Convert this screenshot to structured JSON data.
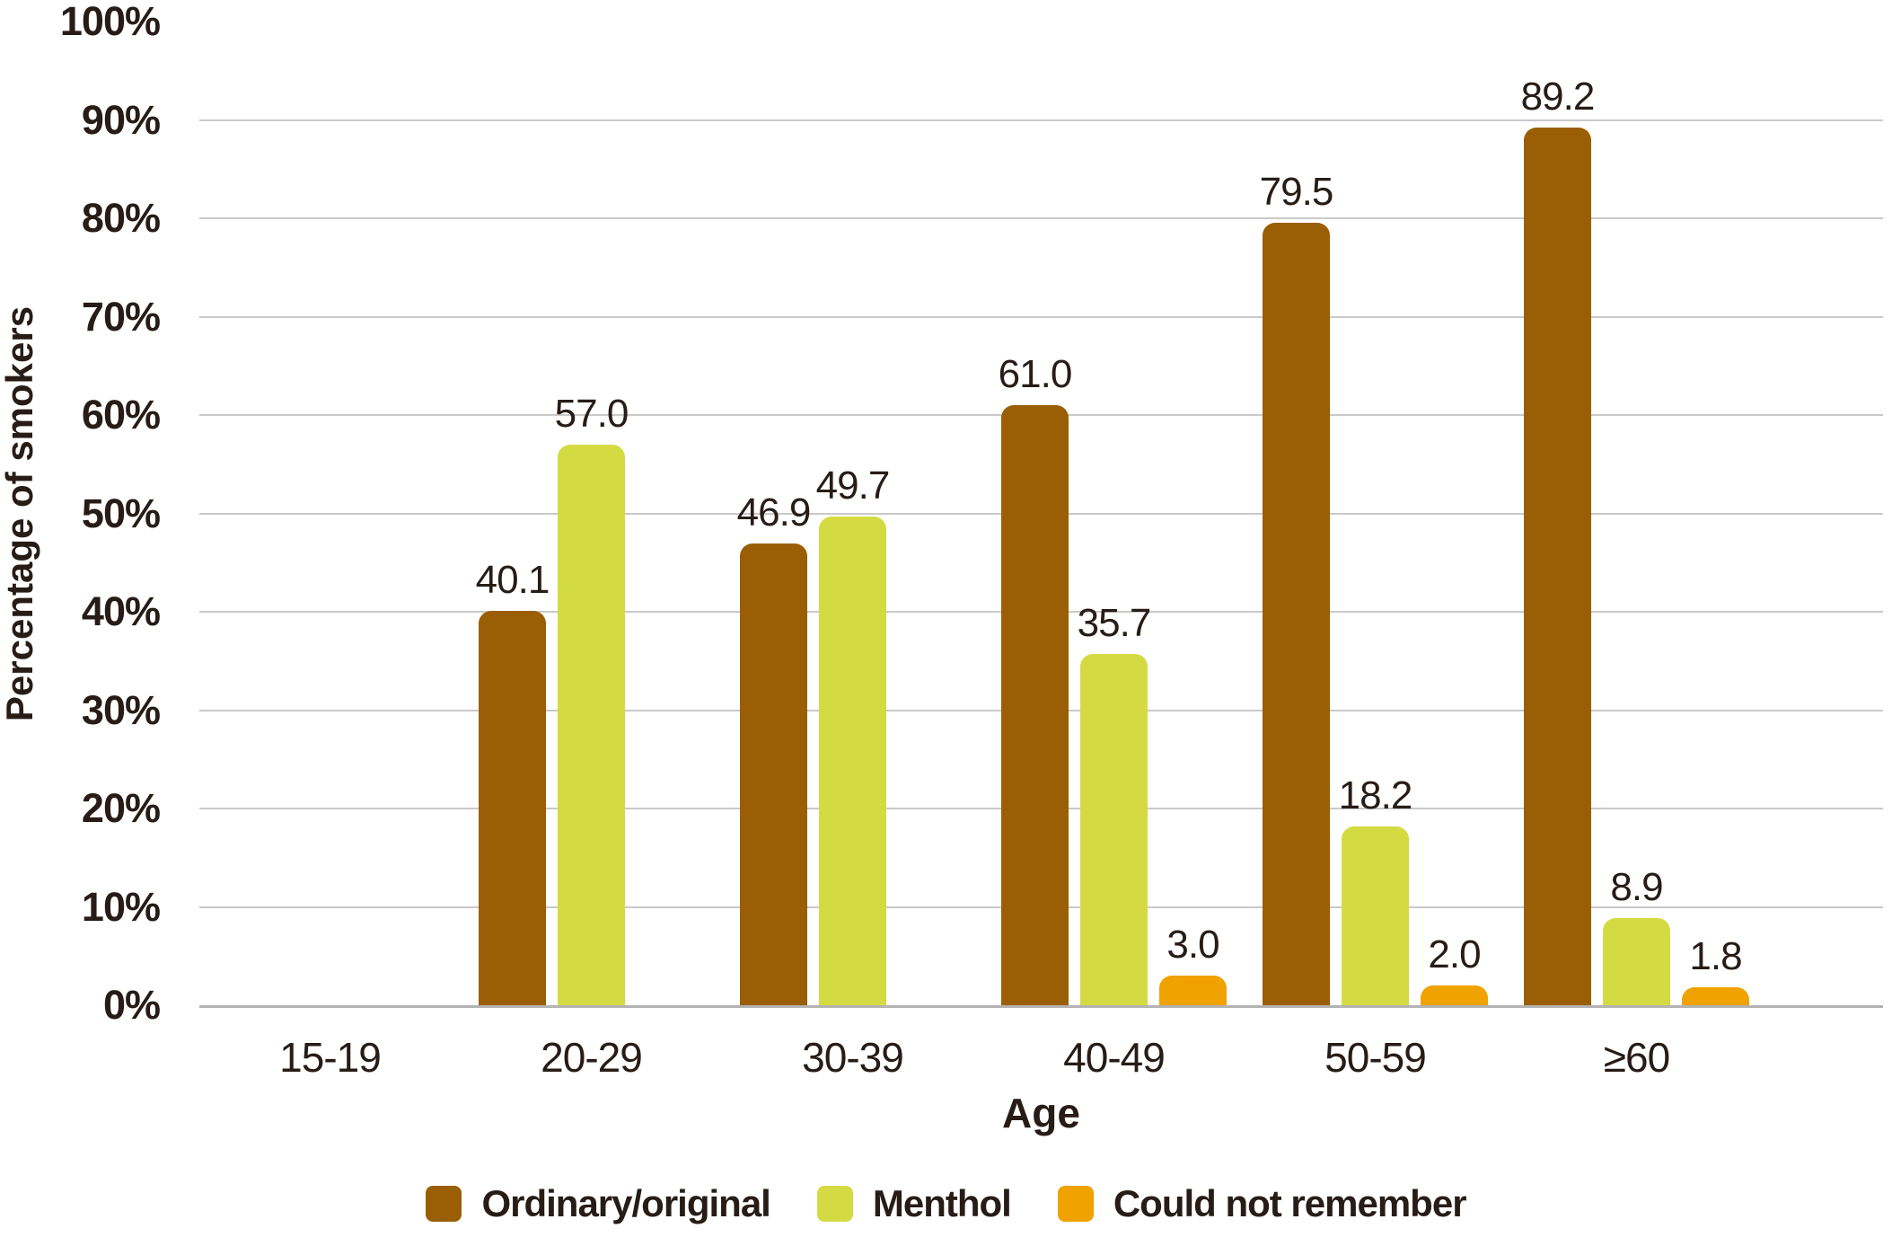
{
  "figure": {
    "background": "#ffffff",
    "text_color": "#271c16",
    "gridline_color": "#c9c9c9",
    "axisline_color": "#b3b3b3"
  },
  "chart_data": {
    "type": "bar",
    "title": "",
    "xlabel": "Age",
    "ylabel": "Percentage of smokers",
    "categories": [
      "15-19",
      "20-29",
      "30-39",
      "40-49",
      "50-59",
      "≥60"
    ],
    "series": [
      {
        "name": "Ordinary/original",
        "color": "#9a5e04",
        "values": [
          null,
          40.1,
          46.9,
          61.0,
          79.5,
          89.2
        ],
        "value_labels": [
          "",
          "40.1",
          "46.9",
          "61.0",
          "79.5",
          "89.2"
        ]
      },
      {
        "name": "Menthol",
        "color": "#d4db42",
        "values": [
          null,
          57.0,
          49.7,
          35.7,
          18.2,
          8.9
        ],
        "value_labels": [
          "",
          "57.0",
          "49.7",
          "35.7",
          "18.2",
          "8.9"
        ]
      },
      {
        "name": "Could not remember",
        "color": "#efa200",
        "values": [
          null,
          null,
          null,
          3.0,
          2.0,
          1.8
        ],
        "value_labels": [
          "",
          "",
          "",
          "3.0",
          "2.0",
          "1.8"
        ]
      }
    ],
    "ylim": [
      0,
      100
    ],
    "ytick_step": 10,
    "y_tick_labels": [
      "0%",
      "10%",
      "20%",
      "30%",
      "40%",
      "50%",
      "60%",
      "70%",
      "80%",
      "90%",
      "100%"
    ],
    "grid": true,
    "grid_lines_at": [
      0,
      10,
      20,
      30,
      40,
      50,
      60,
      70,
      80,
      90
    ],
    "legend_position": "bottom"
  }
}
